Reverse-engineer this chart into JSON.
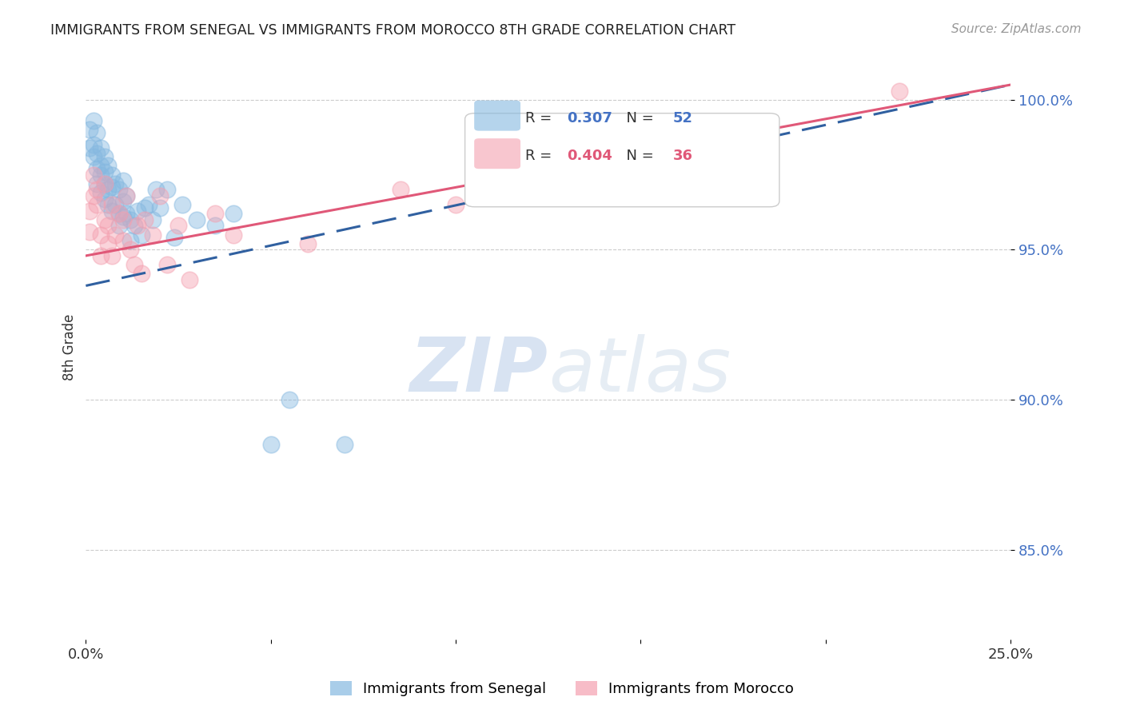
{
  "title": "IMMIGRANTS FROM SENEGAL VS IMMIGRANTS FROM MOROCCO 8TH GRADE CORRELATION CHART",
  "source": "Source: ZipAtlas.com",
  "ylabel": "8th Grade",
  "xlim": [
    0.0,
    0.25
  ],
  "ylim": [
    0.82,
    1.015
  ],
  "yticks": [
    0.85,
    0.9,
    0.95,
    1.0
  ],
  "ytick_labels": [
    "85.0%",
    "90.0%",
    "95.0%",
    "100.0%"
  ],
  "xticks": [
    0.0,
    0.05,
    0.1,
    0.15,
    0.2,
    0.25
  ],
  "xtick_labels": [
    "0.0%",
    "",
    "",
    "",
    "",
    "25.0%"
  ],
  "senegal_R": 0.307,
  "senegal_N": 52,
  "morocco_R": 0.404,
  "morocco_N": 36,
  "senegal_color": "#85b8e0",
  "morocco_color": "#f4a0b0",
  "senegal_line_color": "#3060a0",
  "morocco_line_color": "#e05878",
  "watermark_zip": "ZIP",
  "watermark_atlas": "atlas",
  "legend_label_senegal": "Immigrants from Senegal",
  "legend_label_morocco": "Immigrants from Morocco",
  "background_color": "#ffffff",
  "grid_color": "#cccccc",
  "title_color": "#222222",
  "right_ytick_color": "#4472c4",
  "senegal_line_x0": 0.0,
  "senegal_line_y0": 0.938,
  "senegal_line_x1": 0.25,
  "senegal_line_y1": 1.005,
  "morocco_line_x0": 0.0,
  "morocco_line_y0": 0.948,
  "morocco_line_x1": 0.25,
  "morocco_line_y1": 1.005,
  "senegal_x": [
    0.001,
    0.001,
    0.002,
    0.002,
    0.002,
    0.003,
    0.003,
    0.003,
    0.003,
    0.004,
    0.004,
    0.004,
    0.004,
    0.005,
    0.005,
    0.005,
    0.005,
    0.006,
    0.006,
    0.006,
    0.007,
    0.007,
    0.007,
    0.008,
    0.008,
    0.009,
    0.009,
    0.009,
    0.01,
    0.01,
    0.01,
    0.011,
    0.011,
    0.012,
    0.012,
    0.013,
    0.014,
    0.015,
    0.016,
    0.017,
    0.018,
    0.019,
    0.02,
    0.022,
    0.024,
    0.026,
    0.03,
    0.035,
    0.04,
    0.05,
    0.055,
    0.07
  ],
  "senegal_y": [
    0.984,
    0.99,
    0.985,
    0.981,
    0.993,
    0.977,
    0.982,
    0.989,
    0.972,
    0.984,
    0.978,
    0.969,
    0.975,
    0.981,
    0.976,
    0.972,
    0.967,
    0.978,
    0.965,
    0.97,
    0.971,
    0.975,
    0.963,
    0.972,
    0.965,
    0.97,
    0.962,
    0.958,
    0.973,
    0.966,
    0.961,
    0.968,
    0.962,
    0.96,
    0.953,
    0.958,
    0.963,
    0.955,
    0.964,
    0.965,
    0.96,
    0.97,
    0.964,
    0.97,
    0.954,
    0.965,
    0.96,
    0.958,
    0.962,
    0.885,
    0.9,
    0.885
  ],
  "morocco_x": [
    0.001,
    0.001,
    0.002,
    0.002,
    0.003,
    0.003,
    0.004,
    0.004,
    0.005,
    0.005,
    0.006,
    0.006,
    0.007,
    0.007,
    0.008,
    0.009,
    0.01,
    0.01,
    0.011,
    0.012,
    0.013,
    0.014,
    0.015,
    0.016,
    0.018,
    0.02,
    0.022,
    0.025,
    0.028,
    0.035,
    0.04,
    0.06,
    0.085,
    0.1,
    0.18,
    0.22
  ],
  "morocco_y": [
    0.963,
    0.956,
    0.975,
    0.968,
    0.965,
    0.97,
    0.955,
    0.948,
    0.972,
    0.96,
    0.952,
    0.958,
    0.965,
    0.948,
    0.955,
    0.962,
    0.96,
    0.953,
    0.968,
    0.95,
    0.945,
    0.958,
    0.942,
    0.96,
    0.955,
    0.968,
    0.945,
    0.958,
    0.94,
    0.962,
    0.955,
    0.952,
    0.97,
    0.965,
    0.97,
    1.003
  ]
}
